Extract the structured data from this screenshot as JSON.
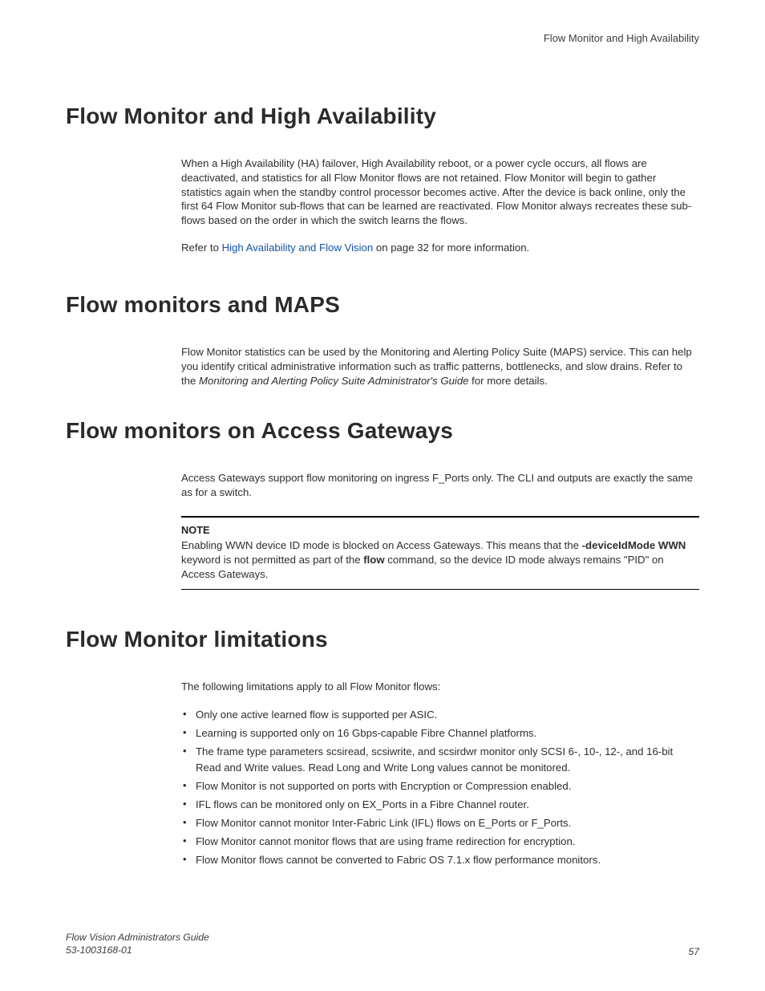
{
  "runningHeader": "Flow Monitor and High Availability",
  "sections": {
    "ha": {
      "title": "Flow Monitor and High Availability",
      "para1": "When a High Availability (HA) failover, High Availability reboot, or a power cycle occurs, all flows are deactivated, and statistics for all Flow Monitor flows are not retained. Flow Monitor will begin to gather statistics again when the standby control processor becomes active. After the device is back online, only the first 64 Flow Monitor sub-flows that can be learned are reactivated. Flow Monitor always recreates these sub-flows based on the order in which the switch learns the flows.",
      "para2_pre": "Refer to ",
      "para2_link": "High Availability and Flow Vision",
      "para2_post": " on page 32 for more information."
    },
    "maps": {
      "title": "Flow monitors and MAPS",
      "para_pre": "Flow Monitor statistics can be used by the Monitoring and Alerting Policy Suite (MAPS) service. This can help you identify critical administrative information such as traffic patterns, bottlenecks, and slow drains. Refer to the ",
      "para_em": "Monitoring and Alerting Policy Suite Administrator's Guide",
      "para_post": " for more details."
    },
    "ag": {
      "title": "Flow monitors on Access Gateways",
      "para": "Access Gateways support flow monitoring on ingress F_Ports only. The CLI and outputs are exactly the same as for a switch.",
      "note": {
        "heading": "NOTE",
        "t1": "Enabling WWN device ID mode is blocked on Access Gateways. This means that the ",
        "b1": "-deviceIdMode WWN",
        "t2": " keyword is not permitted as part of the ",
        "b2": "flow",
        "t3": " command, so the device ID mode always remains \"PID\" on Access Gateways."
      }
    },
    "lim": {
      "title": "Flow Monitor limitations",
      "intro": "The following limitations apply to all Flow Monitor flows:",
      "items": [
        "Only one active learned flow is supported per ASIC.",
        "Learning is supported only on 16 Gbps-capable Fibre Channel platforms.",
        "The frame type parameters scsiread, scsiwrite, and scsirdwr monitor only SCSI 6-, 10-, 12-, and 16-bit Read and Write values. Read Long and Write Long values cannot be monitored.",
        "Flow Monitor is not supported on ports with Encryption or Compression enabled.",
        "IFL flows can be monitored only on EX_Ports in a Fibre Channel router.",
        "Flow Monitor cannot monitor Inter-Fabric Link (IFL) flows on E_Ports or F_Ports.",
        "Flow Monitor cannot monitor flows that are using frame redirection for encryption.",
        "Flow Monitor flows cannot be converted to Fabric OS 7.1.x flow performance monitors."
      ]
    }
  },
  "footer": {
    "line1": "Flow Vision Administrators Guide",
    "line2": "53-1003168-01",
    "page": "57"
  }
}
